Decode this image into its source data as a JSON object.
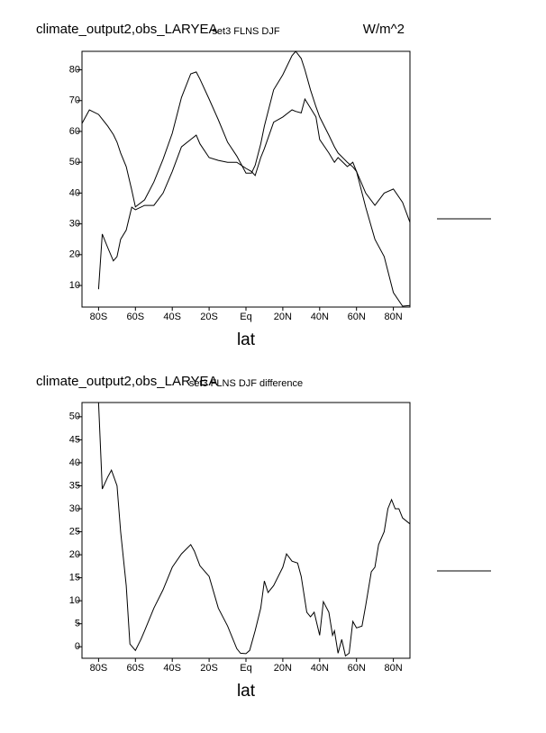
{
  "chart_data": [
    {
      "type": "line",
      "title": "climate_output2,obs_LARYEA",
      "subtitle": "set3 FLNS DJF",
      "units": "W/m^2",
      "xlabel": "lat",
      "x": [
        -89,
        -85,
        -80,
        -78,
        -75,
        -72,
        -70,
        -68,
        -65,
        -62,
        -60,
        -55,
        -50,
        -45,
        -40,
        -35,
        -30,
        -27,
        -25,
        -20,
        -15,
        -10,
        -5,
        0,
        3,
        5,
        8,
        10,
        15,
        20,
        25,
        27,
        30,
        32,
        35,
        38,
        40,
        45,
        48,
        50,
        55,
        58,
        60,
        65,
        70,
        75,
        80,
        85,
        89
      ],
      "series": [
        {
          "color": "#000000",
          "values": [
            62.6,
            67,
            65.5,
            64,
            61.7,
            59,
            56.5,
            53,
            48.6,
            41,
            35.5,
            37.8,
            43.6,
            51,
            59.4,
            71,
            78.7,
            79.3,
            77,
            70.5,
            63.8,
            56.5,
            52,
            46.5,
            46.5,
            49,
            56,
            61.7,
            73.5,
            78.4,
            84.6,
            86,
            83.7,
            80,
            73.5,
            68,
            64.7,
            58.8,
            55,
            53,
            50,
            48.5,
            47,
            40,
            36,
            40,
            41.3,
            37,
            30.5
          ]
        },
        {
          "color": "#000000",
          "values": [
            null,
            null,
            8.8,
            26.7,
            22.3,
            18,
            19.4,
            25,
            28,
            35.4,
            34.6,
            36,
            36,
            40,
            47,
            55,
            57.4,
            58.8,
            56,
            51.5,
            50.6,
            50,
            50,
            48,
            47,
            45.7,
            51.5,
            54.4,
            63,
            64.7,
            67,
            66.5,
            66,
            70.5,
            67.6,
            64.7,
            57.4,
            53,
            50,
            51.5,
            48.6,
            50,
            47,
            35.4,
            25,
            19.4,
            7.7,
            3.3,
            3.5
          ]
        }
      ],
      "xlim": [
        -89,
        89
      ],
      "ylim": [
        3,
        86
      ],
      "xticks": [
        {
          "value": -80,
          "label": "80S"
        },
        {
          "value": -60,
          "label": "60S"
        },
        {
          "value": -40,
          "label": "40S"
        },
        {
          "value": -20,
          "label": "20S"
        },
        {
          "value": 0,
          "label": "Eq"
        },
        {
          "value": 20,
          "label": "20N"
        },
        {
          "value": 40,
          "label": "40N"
        },
        {
          "value": 60,
          "label": "60N"
        },
        {
          "value": 80,
          "label": "80N"
        }
      ],
      "yticks": [
        10,
        20,
        30,
        40,
        50,
        60,
        70,
        80
      ]
    },
    {
      "type": "line",
      "title": "climate_output2,obs_LARYEA",
      "subtitle": "set3 FLNS DJF difference",
      "xlabel": "lat",
      "x": [
        -80,
        -78,
        -75,
        -73,
        -70,
        -68,
        -65,
        -63,
        -60,
        -57,
        -55,
        -50,
        -45,
        -40,
        -35,
        -30,
        -28,
        -25,
        -20,
        -15,
        -10,
        -5,
        -3,
        0,
        2,
        5,
        8,
        10,
        12,
        15,
        20,
        22,
        25,
        28,
        30,
        33,
        35,
        37,
        40,
        42,
        45,
        47,
        48,
        50,
        52,
        54,
        56,
        58,
        60,
        63,
        65,
        68,
        70,
        72,
        75,
        77,
        79,
        81,
        83,
        85,
        89
      ],
      "series": [
        {
          "color": "#000000",
          "values": [
            53,
            34.3,
            36.9,
            38.4,
            35,
            25,
            13.3,
            0.6,
            -0.8,
            1.6,
            3.5,
            8.4,
            12.4,
            17.3,
            20.2,
            22.2,
            20.8,
            17.6,
            15.3,
            8.4,
            4.5,
            -0.4,
            -1.4,
            -1.5,
            -0.8,
            3.5,
            8.4,
            14.3,
            11.8,
            13.3,
            17.3,
            20.2,
            18.6,
            18.2,
            15.3,
            7.5,
            6.5,
            7.5,
            2.5,
            9.8,
            7.5,
            2.5,
            3.5,
            -1.4,
            1.6,
            -2,
            -1.4,
            5.5,
            4.1,
            4.5,
            9,
            16.3,
            17.3,
            22.2,
            25,
            30,
            32,
            30,
            30,
            28,
            26.7
          ]
        }
      ],
      "xlim": [
        -89,
        89
      ],
      "ylim": [
        -2.5,
        53.1
      ],
      "xticks": [
        {
          "value": -80,
          "label": "80S"
        },
        {
          "value": -60,
          "label": "60S"
        },
        {
          "value": -40,
          "label": "40S"
        },
        {
          "value": -20,
          "label": "20S"
        },
        {
          "value": 0,
          "label": "Eq"
        },
        {
          "value": 20,
          "label": "20N"
        },
        {
          "value": 40,
          "label": "40N"
        },
        {
          "value": 60,
          "label": "60N"
        },
        {
          "value": 80,
          "label": "80N"
        }
      ],
      "yticks": [
        0,
        5,
        10,
        15,
        20,
        25,
        30,
        35,
        40,
        45,
        50
      ]
    }
  ]
}
